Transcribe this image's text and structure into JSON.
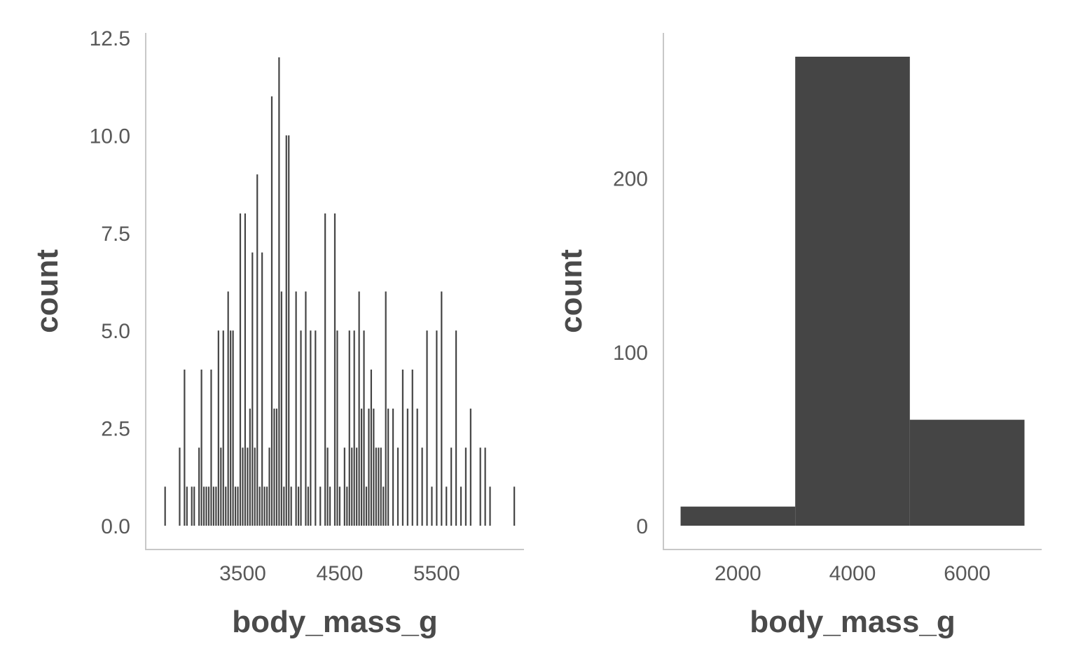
{
  "chart_data": [
    {
      "type": "bar",
      "variant": "histogram",
      "xlabel": "body_mass_g",
      "ylabel": "count",
      "ylim": [
        0,
        12.5
      ],
      "yticks": [
        0.0,
        2.5,
        5.0,
        7.5,
        10.0,
        12.5
      ],
      "ytick_labels": [
        "0.0",
        "2.5",
        "5.0",
        "7.5",
        "10.0",
        "12.5"
      ],
      "xlim": [
        2500,
        6400
      ],
      "xticks": [
        3500,
        4500,
        5500
      ],
      "xtick_labels": [
        "3500",
        "4500",
        "5500"
      ],
      "bar_color": "#454545",
      "grid": false,
      "bins": [
        {
          "x": 2700,
          "count": 1
        },
        {
          "x": 2850,
          "count": 2
        },
        {
          "x": 2900,
          "count": 4
        },
        {
          "x": 2925,
          "count": 1
        },
        {
          "x": 2975,
          "count": 1
        },
        {
          "x": 3000,
          "count": 1
        },
        {
          "x": 3050,
          "count": 2
        },
        {
          "x": 3075,
          "count": 4
        },
        {
          "x": 3100,
          "count": 1
        },
        {
          "x": 3125,
          "count": 1
        },
        {
          "x": 3150,
          "count": 1
        },
        {
          "x": 3175,
          "count": 4
        },
        {
          "x": 3200,
          "count": 1
        },
        {
          "x": 3225,
          "count": 1
        },
        {
          "x": 3250,
          "count": 5
        },
        {
          "x": 3275,
          "count": 2
        },
        {
          "x": 3300,
          "count": 5
        },
        {
          "x": 3325,
          "count": 1
        },
        {
          "x": 3350,
          "count": 6
        },
        {
          "x": 3375,
          "count": 5
        },
        {
          "x": 3400,
          "count": 5
        },
        {
          "x": 3425,
          "count": 1
        },
        {
          "x": 3450,
          "count": 1
        },
        {
          "x": 3475,
          "count": 8
        },
        {
          "x": 3500,
          "count": 2
        },
        {
          "x": 3525,
          "count": 8
        },
        {
          "x": 3550,
          "count": 2
        },
        {
          "x": 3575,
          "count": 3
        },
        {
          "x": 3600,
          "count": 7
        },
        {
          "x": 3625,
          "count": 2
        },
        {
          "x": 3650,
          "count": 9
        },
        {
          "x": 3675,
          "count": 1
        },
        {
          "x": 3700,
          "count": 7
        },
        {
          "x": 3725,
          "count": 1
        },
        {
          "x": 3750,
          "count": 1
        },
        {
          "x": 3775,
          "count": 2
        },
        {
          "x": 3800,
          "count": 11
        },
        {
          "x": 3825,
          "count": 3
        },
        {
          "x": 3850,
          "count": 3
        },
        {
          "x": 3875,
          "count": 12
        },
        {
          "x": 3900,
          "count": 6
        },
        {
          "x": 3925,
          "count": 1
        },
        {
          "x": 3950,
          "count": 10
        },
        {
          "x": 3975,
          "count": 10
        },
        {
          "x": 4000,
          "count": 1
        },
        {
          "x": 4050,
          "count": 6
        },
        {
          "x": 4075,
          "count": 1
        },
        {
          "x": 4100,
          "count": 5
        },
        {
          "x": 4150,
          "count": 6
        },
        {
          "x": 4175,
          "count": 1
        },
        {
          "x": 4200,
          "count": 5
        },
        {
          "x": 4250,
          "count": 5
        },
        {
          "x": 4300,
          "count": 1
        },
        {
          "x": 4350,
          "count": 8
        },
        {
          "x": 4375,
          "count": 2
        },
        {
          "x": 4400,
          "count": 1
        },
        {
          "x": 4450,
          "count": 8
        },
        {
          "x": 4475,
          "count": 5
        },
        {
          "x": 4500,
          "count": 1
        },
        {
          "x": 4550,
          "count": 2
        },
        {
          "x": 4575,
          "count": 1
        },
        {
          "x": 4600,
          "count": 5
        },
        {
          "x": 4625,
          "count": 2
        },
        {
          "x": 4650,
          "count": 5
        },
        {
          "x": 4675,
          "count": 2
        },
        {
          "x": 4700,
          "count": 6
        },
        {
          "x": 4725,
          "count": 3
        },
        {
          "x": 4750,
          "count": 5
        },
        {
          "x": 4775,
          "count": 1
        },
        {
          "x": 4800,
          "count": 3
        },
        {
          "x": 4825,
          "count": 4
        },
        {
          "x": 4850,
          "count": 3
        },
        {
          "x": 4875,
          "count": 2
        },
        {
          "x": 4900,
          "count": 2
        },
        {
          "x": 4925,
          "count": 2
        },
        {
          "x": 4950,
          "count": 1
        },
        {
          "x": 4975,
          "count": 6
        },
        {
          "x": 5000,
          "count": 3
        },
        {
          "x": 5050,
          "count": 3
        },
        {
          "x": 5100,
          "count": 2
        },
        {
          "x": 5150,
          "count": 4
        },
        {
          "x": 5200,
          "count": 3
        },
        {
          "x": 5250,
          "count": 4
        },
        {
          "x": 5300,
          "count": 3
        },
        {
          "x": 5350,
          "count": 2
        },
        {
          "x": 5400,
          "count": 5
        },
        {
          "x": 5450,
          "count": 1
        },
        {
          "x": 5500,
          "count": 5
        },
        {
          "x": 5550,
          "count": 6
        },
        {
          "x": 5600,
          "count": 1
        },
        {
          "x": 5650,
          "count": 2
        },
        {
          "x": 5700,
          "count": 5
        },
        {
          "x": 5750,
          "count": 1
        },
        {
          "x": 5800,
          "count": 2
        },
        {
          "x": 5850,
          "count": 3
        },
        {
          "x": 5950,
          "count": 2
        },
        {
          "x": 6000,
          "count": 2
        },
        {
          "x": 6050,
          "count": 1
        },
        {
          "x": 6300,
          "count": 1
        }
      ]
    },
    {
      "type": "bar",
      "variant": "histogram",
      "xlabel": "body_mass_g",
      "ylabel": "count",
      "ylim": [
        0,
        283
      ],
      "yticks": [
        0,
        100,
        200
      ],
      "ytick_labels": [
        "0",
        "100",
        "200"
      ],
      "xlim": [
        700,
        7300
      ],
      "xticks": [
        2000,
        4000,
        6000
      ],
      "xtick_labels": [
        "2000",
        "4000",
        "6000"
      ],
      "bar_color": "#454545",
      "grid": false,
      "bins": [
        {
          "x0": 1000,
          "x1": 3000,
          "count": 11
        },
        {
          "x0": 3000,
          "x1": 5000,
          "count": 270
        },
        {
          "x0": 5000,
          "x1": 7000,
          "count": 61
        }
      ]
    }
  ]
}
